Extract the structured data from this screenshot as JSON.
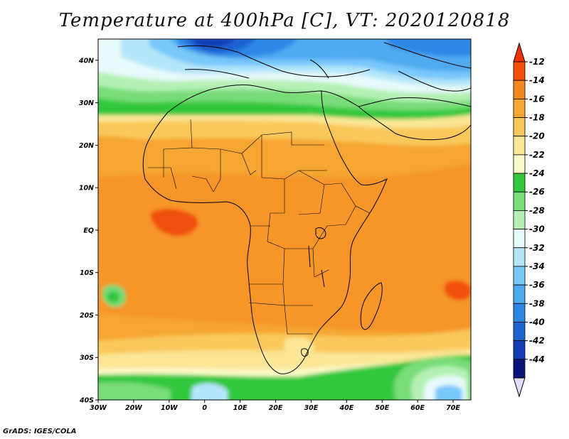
{
  "title": "Temperature at 400hPa [C], VT: 2020120818",
  "credit": "GrADS: IGES/COLA",
  "map": {
    "lat_labels": [
      {
        "lat": 40,
        "label": "40N"
      },
      {
        "lat": 30,
        "label": "30N"
      },
      {
        "lat": 20,
        "label": "20N"
      },
      {
        "lat": 10,
        "label": "10N"
      },
      {
        "lat": 0,
        "label": "EQ"
      },
      {
        "lat": -10,
        "label": "10S"
      },
      {
        "lat": -20,
        "label": "20S"
      },
      {
        "lat": -30,
        "label": "30S"
      },
      {
        "lat": -40,
        "label": "40S"
      }
    ],
    "lon_labels": [
      {
        "lon": -30,
        "label": "30W"
      },
      {
        "lon": -20,
        "label": "20W"
      },
      {
        "lon": -10,
        "label": "10W"
      },
      {
        "lon": 0,
        "label": "0"
      },
      {
        "lon": 10,
        "label": "10E"
      },
      {
        "lon": 20,
        "label": "20E"
      },
      {
        "lon": 30,
        "label": "30E"
      },
      {
        "lon": 40,
        "label": "40E"
      },
      {
        "lon": 50,
        "label": "50E"
      },
      {
        "lon": 60,
        "label": "60E"
      },
      {
        "lon": 70,
        "label": "70E"
      }
    ],
    "lon_range": [
      -30,
      75
    ],
    "lat_range": [
      -40,
      45
    ]
  },
  "colorbar": {
    "levels": [
      {
        "label": "-12",
        "color": "#f0500a"
      },
      {
        "label": "-14",
        "color": "#f5871e"
      },
      {
        "label": "-16",
        "color": "#f5a532"
      },
      {
        "label": "-18",
        "color": "#fac85a"
      },
      {
        "label": "-20",
        "color": "#fae696"
      },
      {
        "label": "-22",
        "color": "#fafac8"
      },
      {
        "label": "-24",
        "color": "#32c83c"
      },
      {
        "label": "-26",
        "color": "#78dc78"
      },
      {
        "label": "-28",
        "color": "#b4f0b4"
      },
      {
        "label": "-30",
        "color": "#e6fafa"
      },
      {
        "label": "-32",
        "color": "#b4e6fa"
      },
      {
        "label": "-34",
        "color": "#78c8fa"
      },
      {
        "label": "-36",
        "color": "#50aaf0"
      },
      {
        "label": "-38",
        "color": "#2d87e6"
      },
      {
        "label": "-40",
        "color": "#1e64d2"
      },
      {
        "label": "-42",
        "color": "#143cb4"
      },
      {
        "label": "-44",
        "color": "#0a1478"
      }
    ],
    "top_arrow_color": "#f0320a",
    "bottom_arrow_color": "#e1dcfa"
  }
}
